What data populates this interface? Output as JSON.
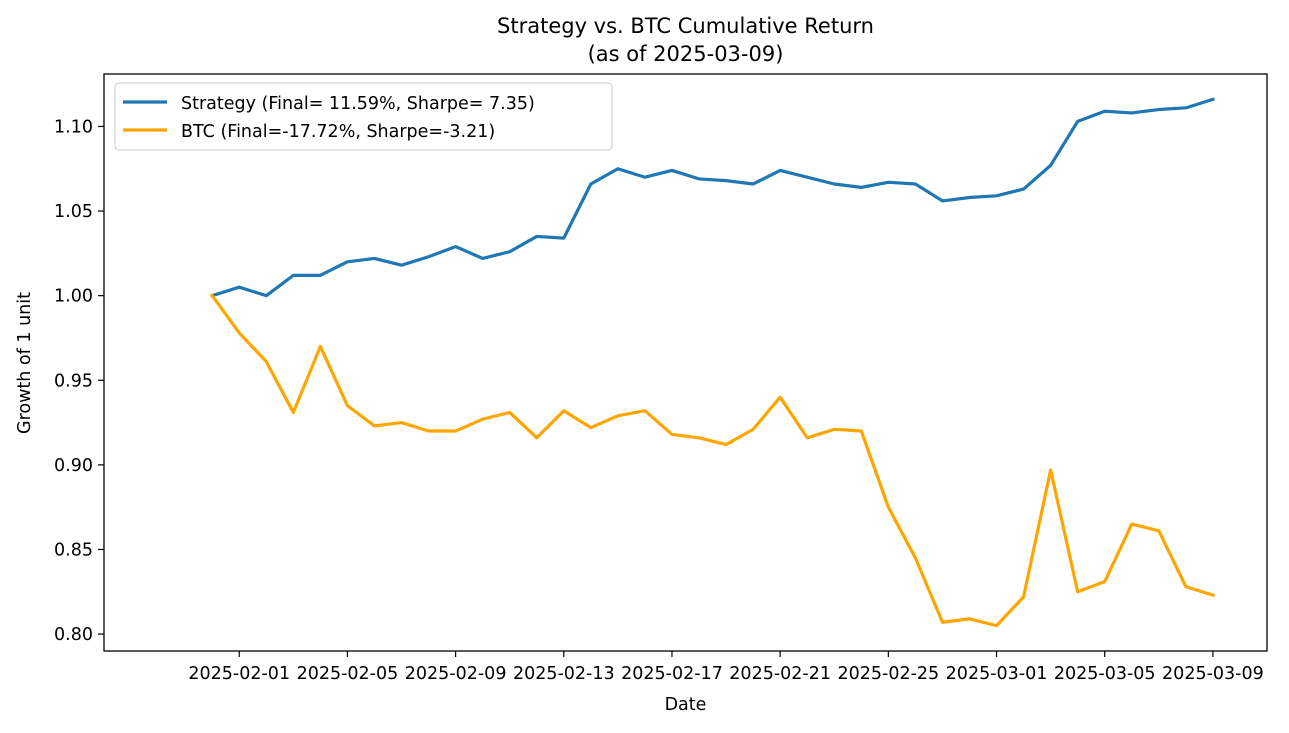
{
  "chart_data": {
    "type": "line",
    "title": "Strategy vs. BTC Cumulative Return",
    "subtitle": "(as of 2025-03-09)",
    "xlabel": "Date",
    "ylabel": "Growth of 1 unit",
    "ylim": [
      0.79,
      1.131
    ],
    "yticks": [
      0.8,
      0.85,
      0.9,
      0.95,
      1.0,
      1.05,
      1.1
    ],
    "ytick_labels": [
      "0.80",
      "0.85",
      "0.90",
      "0.95",
      "1.00",
      "1.05",
      "1.10"
    ],
    "xlim": [
      "2025-01-27",
      "2025-03-11"
    ],
    "xticks": [
      "2025-02-01",
      "2025-02-05",
      "2025-02-09",
      "2025-02-13",
      "2025-02-17",
      "2025-02-21",
      "2025-02-25",
      "2025-03-01",
      "2025-03-05",
      "2025-03-09"
    ],
    "grid": false,
    "legend_position": "upper left",
    "x": [
      "2025-01-31",
      "2025-02-01",
      "2025-02-02",
      "2025-02-03",
      "2025-02-04",
      "2025-02-05",
      "2025-02-06",
      "2025-02-07",
      "2025-02-08",
      "2025-02-09",
      "2025-02-10",
      "2025-02-11",
      "2025-02-12",
      "2025-02-13",
      "2025-02-14",
      "2025-02-15",
      "2025-02-16",
      "2025-02-17",
      "2025-02-18",
      "2025-02-19",
      "2025-02-20",
      "2025-02-21",
      "2025-02-22",
      "2025-02-23",
      "2025-02-24",
      "2025-02-25",
      "2025-02-26",
      "2025-02-27",
      "2025-02-28",
      "2025-03-01",
      "2025-03-02",
      "2025-03-03",
      "2025-03-04",
      "2025-03-05",
      "2025-03-06",
      "2025-03-07",
      "2025-03-08",
      "2025-03-09"
    ],
    "series": [
      {
        "name": "Strategy (Final= 11.59%, Sharpe= 7.35)",
        "color": "#1f77b4",
        "values": [
          1.0,
          1.005,
          1.0,
          1.012,
          1.012,
          1.02,
          1.022,
          1.018,
          1.023,
          1.029,
          1.022,
          1.026,
          1.035,
          1.034,
          1.066,
          1.075,
          1.07,
          1.074,
          1.069,
          1.068,
          1.066,
          1.074,
          1.07,
          1.066,
          1.064,
          1.067,
          1.066,
          1.056,
          1.058,
          1.059,
          1.063,
          1.077,
          1.103,
          1.109,
          1.108,
          1.11,
          1.111,
          1.116
        ]
      },
      {
        "name": "BTC (Final=-17.72%, Sharpe=-3.21)",
        "color": "#ffa500",
        "values": [
          1.0,
          0.978,
          0.961,
          0.931,
          0.97,
          0.935,
          0.923,
          0.925,
          0.92,
          0.92,
          0.927,
          0.931,
          0.916,
          0.932,
          0.922,
          0.929,
          0.932,
          0.918,
          0.916,
          0.912,
          0.921,
          0.94,
          0.916,
          0.921,
          0.92,
          0.875,
          0.845,
          0.807,
          0.809,
          0.805,
          0.822,
          0.897,
          0.825,
          0.831,
          0.865,
          0.861,
          0.828,
          0.823
        ]
      }
    ]
  }
}
